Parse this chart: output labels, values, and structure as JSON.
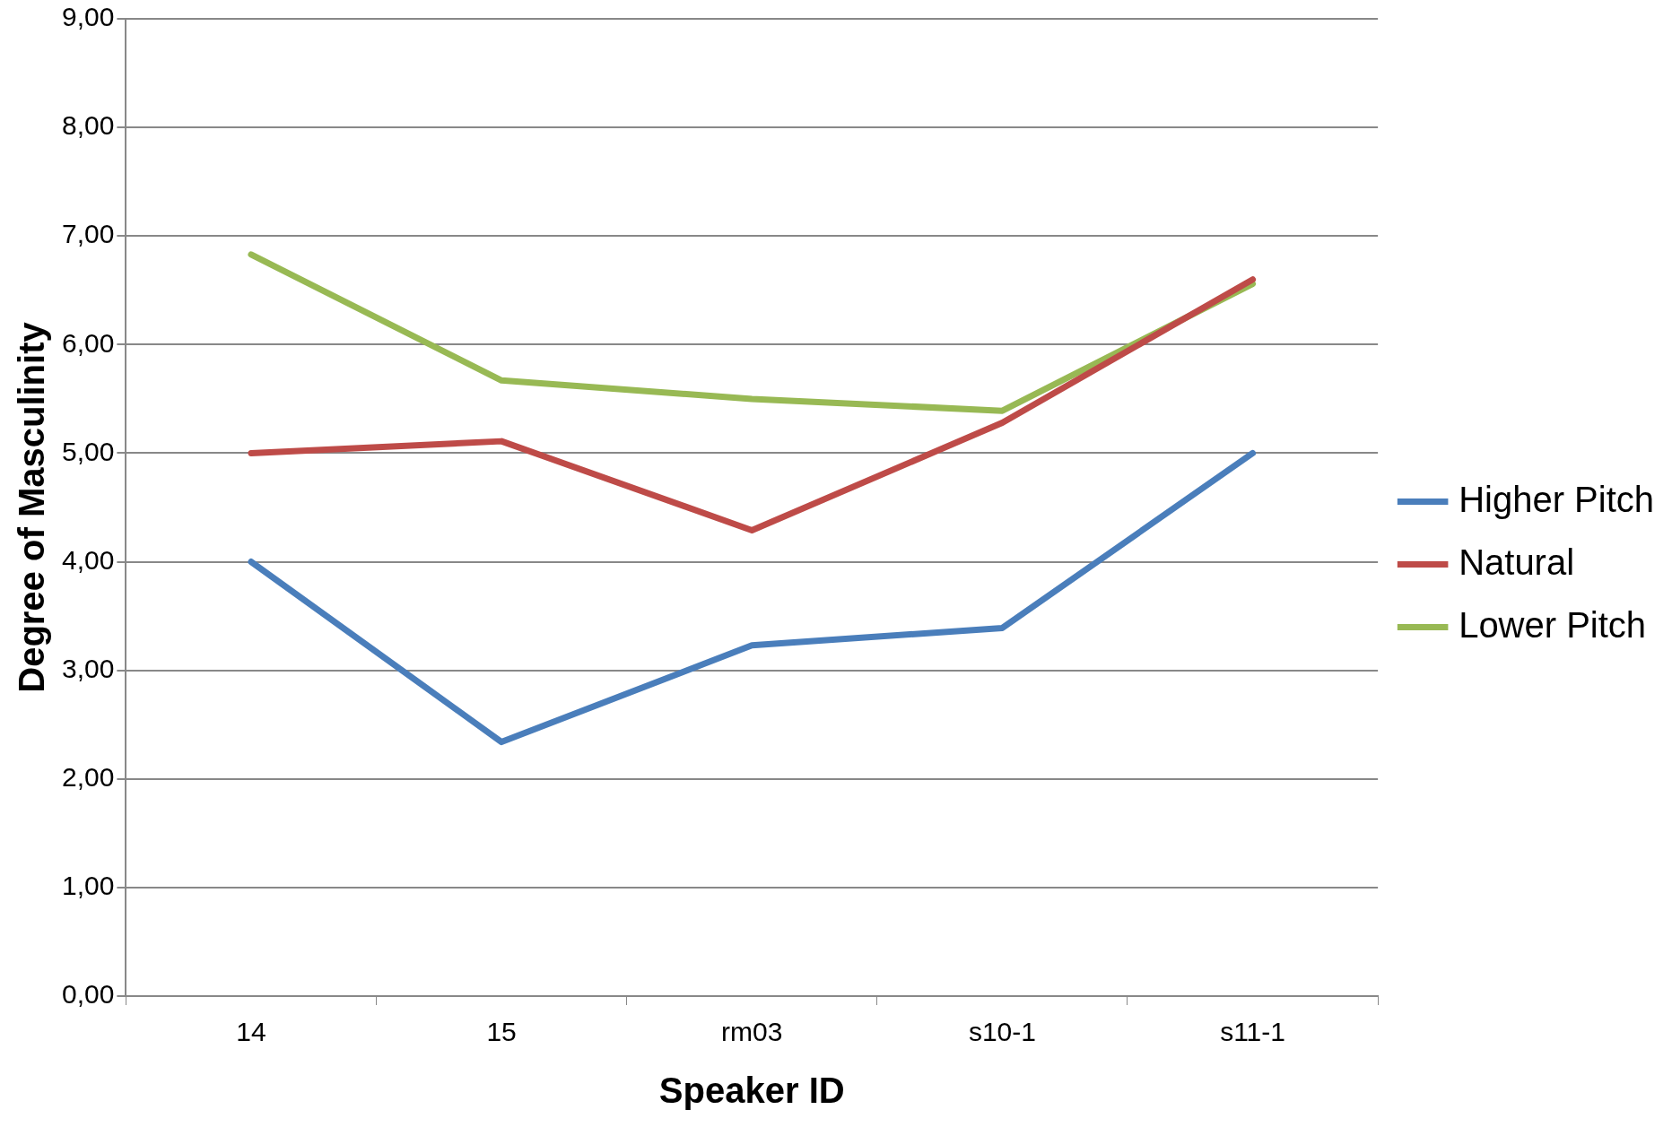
{
  "chart_data": {
    "type": "line",
    "xlabel": "Speaker ID",
    "ylabel": "Degree of Masculinity",
    "categories": [
      "14",
      "15",
      "rm03",
      "s10-1",
      "s11-1"
    ],
    "series": [
      {
        "name": "Higher Pitch",
        "color": "#4a7ebb",
        "values": [
          4.0,
          2.34,
          3.23,
          3.39,
          5.0
        ]
      },
      {
        "name": "Natural",
        "color": "#be4b48",
        "values": [
          5.0,
          5.11,
          4.29,
          5.28,
          6.6
        ]
      },
      {
        "name": "Lower Pitch",
        "color": "#98b954",
        "values": [
          6.83,
          5.67,
          5.5,
          5.39,
          6.56
        ]
      }
    ],
    "ylim": [
      0,
      9
    ],
    "yticks": [
      {
        "value": 0,
        "label": "0,00"
      },
      {
        "value": 1,
        "label": "1,00"
      },
      {
        "value": 2,
        "label": "2,00"
      },
      {
        "value": 3,
        "label": "3,00"
      },
      {
        "value": 4,
        "label": "4,00"
      },
      {
        "value": 5,
        "label": "5,00"
      },
      {
        "value": 6,
        "label": "6,00"
      },
      {
        "value": 7,
        "label": "7,00"
      },
      {
        "value": 8,
        "label": "8,00"
      },
      {
        "value": 9,
        "label": "9,00"
      }
    ],
    "grid": "y",
    "legend": "right",
    "marker": "none",
    "line_style": "solid"
  }
}
